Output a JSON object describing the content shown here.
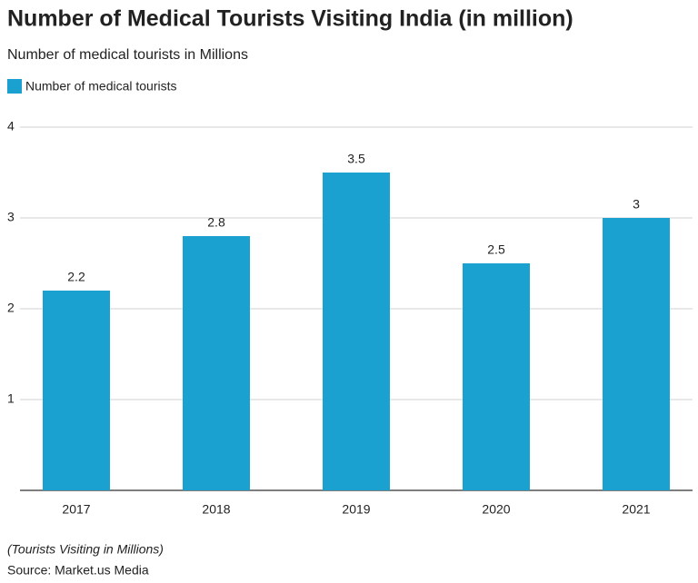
{
  "chart_data": {
    "type": "bar",
    "title": "Number of Medical Tourists Visiting India (in million)",
    "subtitle": "Number of medical tourists in Millions",
    "categories": [
      "2017",
      "2018",
      "2019",
      "2020",
      "2021"
    ],
    "series": [
      {
        "name": "Number of medical tourists",
        "color": "#1ba1cf",
        "values": [
          2.2,
          2.8,
          3.5,
          2.5,
          3
        ]
      }
    ],
    "ylim": [
      0,
      4
    ],
    "yticks": [
      1,
      2,
      3,
      4
    ],
    "grid": true,
    "legend": "top-left",
    "note": "(Tourists Visiting in Millions)",
    "source": "Source: Market.us Media"
  }
}
